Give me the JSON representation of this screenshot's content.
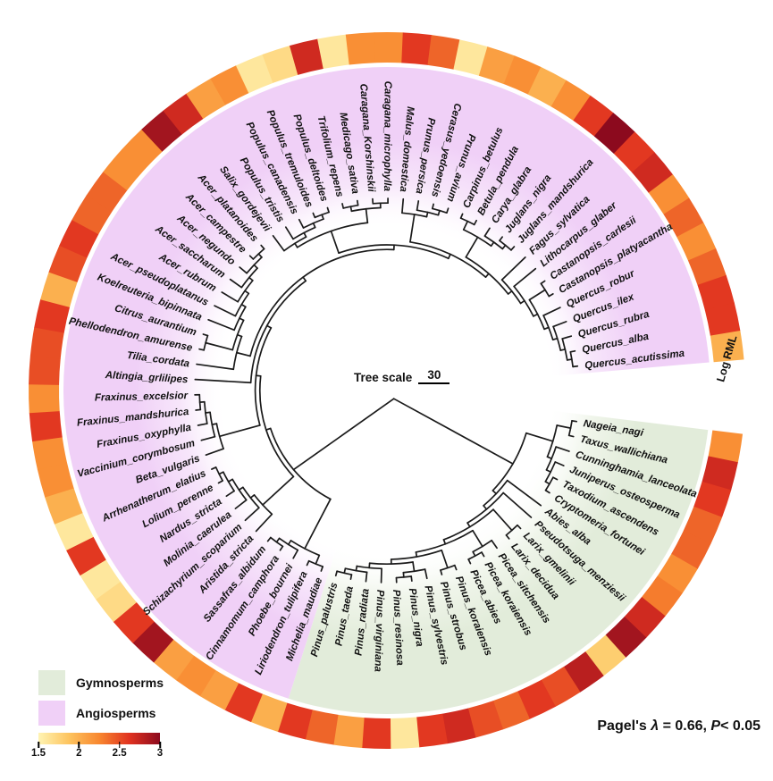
{
  "annotations": {
    "tree_scale_label": "Tree scale",
    "tree_scale_value": "30",
    "ring_label": "Log RML",
    "stats_prefix": "Pagel's ",
    "stats_lambda": "λ",
    "stats_mid": " = 0.66, ",
    "stats_p": "P",
    "stats_tail": "< 0.05"
  },
  "legend": {
    "gymnosperms_label": "Gymnosperms",
    "angiosperms_label": "Angiosperms",
    "colorbar_ticks": [
      "1.5",
      "2",
      "2.5",
      "3"
    ]
  },
  "colors": {
    "gymnosperm_bg": "#e2ecda",
    "gymnosperm_bg_mid": "#eef4e8",
    "angiosperm_bg": "#f0d0f7",
    "angiosperm_bg_mid": "#f6e3fa",
    "branch": "#1b1b1b",
    "colormap": [
      "#FFF4B3",
      "#FDC45F",
      "#F8872F",
      "#E03220",
      "#8C0A1E"
    ],
    "colormap_domain": [
      1.5,
      3
    ]
  },
  "chart_data": {
    "type": "circular-phylogeny-heatmap",
    "ring_metric": "Log RML",
    "scale_bar": 30,
    "pagels_lambda": 0.66,
    "p_value": "< 0.05",
    "groups": [
      "Gymnosperms",
      "Angiosperms"
    ],
    "tree": [
      [
        [
          [
            "Nageia_nagi",
            "Taxus_wallichiana"
          ],
          [
            "Cunninghamia_lanceolata",
            [
              "Juniperus_osteosperma",
              [
                "Taxodium_ascendens",
                "Cryptomeria_fortunei"
              ]
            ]
          ]
        ],
        [
          "Abies_alba",
          [
            "Pseudotsuga_menziesii",
            [
              [
                "Larix_gmelinii",
                "Larix_decidua"
              ],
              [
                [
                  "Picea_sitchensis",
                  [
                    "Picea_koraiensis",
                    "Picea_abies"
                  ]
                ],
                [
                  [
                    "Pinus_koraiensis",
                    "Pinus_strobus"
                  ],
                  [
                    [
                      "Pinus_sylvestris",
                      [
                        "Pinus_nigra",
                        "Pinus_resinosa"
                      ]
                    ],
                    [
                      "Pinus_virginiana",
                      [
                        "Pinus_radiata",
                        [
                          "Pinus_taeda",
                          "Pinus_palustris"
                        ]
                      ]
                    ]
                  ]
                ]
              ]
            ]
          ]
        ]
      ],
      [
        [
          [
            "Michelia_maudiae",
            "Liriodendron_tulipifera"
          ],
          [
            "Phoebe_bournei",
            [
              "Cinnamomum_camphora",
              "Sassafras_albidum"
            ]
          ]
        ],
        [
          [
            "Aristida_stricta",
            [
              "Schizachyrium_scoparium",
              [
                "Molinia_caerulea",
                [
                  "Nardus_stricta",
                  [
                    "Lolium_perenne",
                    "Arrhenatherum_elatius"
                  ]
                ]
              ]
            ]
          ],
          [
            [
              "Beta_vulgaris",
              [
                "Vaccinium_corymbosum",
                [
                  "Fraxinus_oxyphylla",
                  [
                    "Fraxinus_mandshurica",
                    "Fraxinus_excelsior"
                  ]
                ]
              ]
            ],
            [
              "Altingia_grlilipes",
              [
                [
                  "Tilia_cordata",
                  [
                    [
                      "Phellodendron_amurense",
                      "Citrus_aurantium"
                    ],
                    [
                      "Koelreuteria_bipinnata",
                      [
                        "Acer_pseudoplatanus",
                        [
                          "Acer_rubrum",
                          [
                            "Acer_saccharum",
                            [
                              "Acer_negundo",
                              [
                                "Acer_campestre",
                                "Acer_platanoides"
                              ]
                            ]
                          ]
                        ]
                      ]
                    ]
                  ]
                ],
                [
                  [
                    [
                      "Salix_gordejevii",
                      [
                        "Populus_tristis",
                        [
                          "Populus_canadensis",
                          [
                            "Populus_tremuloides",
                            "Populus_deltoides"
                          ]
                        ]
                      ]
                    ],
                    [
                      [
                        "Trifolium_repens",
                        "Medicago_sativa"
                      ],
                      [
                        "Caragana_Korshinskii",
                        "Caragana_microphylla"
                      ]
                    ]
                  ],
                  [
                    [
                      "Malus_domestica",
                      [
                        "Prunus_persica",
                        [
                          "Cerasus_yedoensis",
                          "Prunus_avium"
                        ]
                      ]
                    ],
                    [
                      [
                        [
                          "Carpinus_betulus",
                          "Betula_pendula"
                        ],
                        [
                          "Carya_glabra",
                          [
                            "Juglans_nigra",
                            "Juglans_mandshurica"
                          ]
                        ]
                      ],
                      [
                        "Fagus_sylvatica",
                        [
                          "Lithocarpus_glaber",
                          [
                            [
                              "Castanopsis_carlesii",
                              "Castanopsis_platyacantha"
                            ],
                            [
                              "Quercus_robur",
                              [
                                "Quercus_ilex",
                                [
                                  "Quercus_rubra",
                                  [
                                    "Quercus_alba",
                                    "Quercus_acutissima"
                                  ]
                                ]
                              ]
                            ]
                          ]
                        ]
                      ]
                    ]
                  ]
                ]
              ]
            ]
          ]
        ]
      ]
    ],
    "species": [
      {
        "name": "Nageia_nagi",
        "group": "Gymnosperms",
        "log_rml": 2.2
      },
      {
        "name": "Taxus_wallichiana",
        "group": "Gymnosperms",
        "log_rml": 2.7
      },
      {
        "name": "Cunninghamia_lanceolata",
        "group": "Gymnosperms",
        "log_rml": 2.6
      },
      {
        "name": "Juniperus_osteosperma",
        "group": "Gymnosperms",
        "log_rml": 2.4
      },
      {
        "name": "Taxodium_ascendens",
        "group": "Gymnosperms",
        "log_rml": 2.4
      },
      {
        "name": "Cryptomeria_fortunei",
        "group": "Gymnosperms",
        "log_rml": 2.2
      },
      {
        "name": "Abies_alba",
        "group": "Gymnosperms",
        "log_rml": 2.3
      },
      {
        "name": "Pseudotsuga_menziesii",
        "group": "Gymnosperms",
        "log_rml": 2.7
      },
      {
        "name": "Larix_gmelinii",
        "group": "Gymnosperms",
        "log_rml": 2.9
      },
      {
        "name": "Larix_decidua",
        "group": "Gymnosperms",
        "log_rml": 1.8
      },
      {
        "name": "Picea_sitchensis",
        "group": "Gymnosperms",
        "log_rml": 2.8
      },
      {
        "name": "Picea_koraiensis",
        "group": "Gymnosperms",
        "log_rml": 2.5
      },
      {
        "name": "Picea_abies",
        "group": "Gymnosperms",
        "log_rml": 2.6
      },
      {
        "name": "Pinus_koraiensis",
        "group": "Gymnosperms",
        "log_rml": 2.4
      },
      {
        "name": "Pinus_strobus",
        "group": "Gymnosperms",
        "log_rml": 2.5
      },
      {
        "name": "Pinus_sylvestris",
        "group": "Gymnosperms",
        "log_rml": 2.7
      },
      {
        "name": "Pinus_nigra",
        "group": "Gymnosperms",
        "log_rml": 2.6
      },
      {
        "name": "Pinus_resinosa",
        "group": "Gymnosperms",
        "log_rml": 1.6
      },
      {
        "name": "Pinus_virginiana",
        "group": "Gymnosperms",
        "log_rml": 2.6
      },
      {
        "name": "Pinus_radiata",
        "group": "Gymnosperms",
        "log_rml": 2.1
      },
      {
        "name": "Pinus_taeda",
        "group": "Gymnosperms",
        "log_rml": 2.4
      },
      {
        "name": "Pinus_palustris",
        "group": "Gymnosperms",
        "log_rml": 2.6
      },
      {
        "name": "Michelia_maudiae",
        "group": "Angiosperms",
        "log_rml": 2.0
      },
      {
        "name": "Liriodendron_tulipifera",
        "group": "Angiosperms",
        "log_rml": 2.6
      },
      {
        "name": "Phoebe_bournei",
        "group": "Angiosperms",
        "log_rml": 2.1
      },
      {
        "name": "Cinnamomum_camphora",
        "group": "Angiosperms",
        "log_rml": 2.2
      },
      {
        "name": "Sassafras_albidum",
        "group": "Angiosperms",
        "log_rml": 2.1
      },
      {
        "name": "Aristida_stricta",
        "group": "Angiosperms",
        "log_rml": 2.9
      },
      {
        "name": "Schizachyrium_scoparium",
        "group": "Angiosperms",
        "log_rml": 2.6
      },
      {
        "name": "Molinia_caerulea",
        "group": "Angiosperms",
        "log_rml": 1.7
      },
      {
        "name": "Nardus_stricta",
        "group": "Angiosperms",
        "log_rml": 1.6
      },
      {
        "name": "Lolium_perenne",
        "group": "Angiosperms",
        "log_rml": 2.6
      },
      {
        "name": "Arrhenatherum_elatius",
        "group": "Angiosperms",
        "log_rml": 1.6
      },
      {
        "name": "Beta_vulgaris",
        "group": "Angiosperms",
        "log_rml": 2.0
      },
      {
        "name": "Vaccinium_corymbosum",
        "group": "Angiosperms",
        "log_rml": 2.2
      },
      {
        "name": "Fraxinus_oxyphylla",
        "group": "Angiosperms",
        "log_rml": 2.2
      },
      {
        "name": "Fraxinus_mandshurica",
        "group": "Angiosperms",
        "log_rml": 2.6
      },
      {
        "name": "Fraxinus_excelsior",
        "group": "Angiosperms",
        "log_rml": 2.2
      },
      {
        "name": "Altingia_grlilipes",
        "group": "Angiosperms",
        "log_rml": 2.5
      },
      {
        "name": "Tilia_cordata",
        "group": "Angiosperms",
        "log_rml": 2.5
      },
      {
        "name": "Phellodendron_amurense",
        "group": "Angiosperms",
        "log_rml": 2.6
      },
      {
        "name": "Citrus_aurantium",
        "group": "Angiosperms",
        "log_rml": 2.0
      },
      {
        "name": "Koelreuteria_bipinnata",
        "group": "Angiosperms",
        "log_rml": 2.5
      },
      {
        "name": "Acer_pseudoplatanus",
        "group": "Angiosperms",
        "log_rml": 2.6
      },
      {
        "name": "Acer_rubrum",
        "group": "Angiosperms",
        "log_rml": 2.4
      },
      {
        "name": "Acer_saccharum",
        "group": "Angiosperms",
        "log_rml": 2.4
      },
      {
        "name": "Acer_negundo",
        "group": "Angiosperms",
        "log_rml": 2.2
      },
      {
        "name": "Acer_campestre",
        "group": "Angiosperms",
        "log_rml": 2.2
      },
      {
        "name": "Acer_platanoides",
        "group": "Angiosperms",
        "log_rml": 2.9
      },
      {
        "name": "Salix_gordejevii",
        "group": "Angiosperms",
        "log_rml": 2.7
      },
      {
        "name": "Populus_tristis",
        "group": "Angiosperms",
        "log_rml": 2.1
      },
      {
        "name": "Populus_canadensis",
        "group": "Angiosperms",
        "log_rml": 2.2
      },
      {
        "name": "Populus_tremuloides",
        "group": "Angiosperms",
        "log_rml": 1.6
      },
      {
        "name": "Populus_deltoides",
        "group": "Angiosperms",
        "log_rml": 1.7
      },
      {
        "name": "Trifolium_repens",
        "group": "Angiosperms",
        "log_rml": 2.7
      },
      {
        "name": "Medicago_sativa",
        "group": "Angiosperms",
        "log_rml": 1.6
      },
      {
        "name": "Caragana_Korshinskii",
        "group": "Angiosperms",
        "log_rml": 2.2
      },
      {
        "name": "Caragana_microphylla",
        "group": "Angiosperms",
        "log_rml": 2.2
      },
      {
        "name": "Malus_domestica",
        "group": "Angiosperms",
        "log_rml": 2.6
      },
      {
        "name": "Prunus_persica",
        "group": "Angiosperms",
        "log_rml": 2.4
      },
      {
        "name": "Cerasus_yedoensis",
        "group": "Angiosperms",
        "log_rml": 1.6
      },
      {
        "name": "Prunus_avium",
        "group": "Angiosperms",
        "log_rml": 2.1
      },
      {
        "name": "Carpinus_betulus",
        "group": "Angiosperms",
        "log_rml": 2.2
      },
      {
        "name": "Betula_pendula",
        "group": "Angiosperms",
        "log_rml": 2.0
      },
      {
        "name": "Carya_glabra",
        "group": "Angiosperms",
        "log_rml": 2.2
      },
      {
        "name": "Juglans_nigra",
        "group": "Angiosperms",
        "log_rml": 2.6
      },
      {
        "name": "Juglans_mandshurica",
        "group": "Angiosperms",
        "log_rml": 3.0
      },
      {
        "name": "Fagus_sylvatica",
        "group": "Angiosperms",
        "log_rml": 2.6
      },
      {
        "name": "Lithocarpus_glaber",
        "group": "Angiosperms",
        "log_rml": 2.7
      },
      {
        "name": "Castanopsis_carlesii",
        "group": "Angiosperms",
        "log_rml": 2.2
      },
      {
        "name": "Castanopsis_platyacantha",
        "group": "Angiosperms",
        "log_rml": 2.4
      },
      {
        "name": "Quercus_robur",
        "group": "Angiosperms",
        "log_rml": 2.2
      },
      {
        "name": "Quercus_ilex",
        "group": "Angiosperms",
        "log_rml": 2.4
      },
      {
        "name": "Quercus_rubra",
        "group": "Angiosperms",
        "log_rml": 2.6
      },
      {
        "name": "Quercus_alba",
        "group": "Angiosperms",
        "log_rml": 2.6
      },
      {
        "name": "Quercus_acutissima",
        "group": "Angiosperms",
        "log_rml": 2.0
      }
    ]
  }
}
